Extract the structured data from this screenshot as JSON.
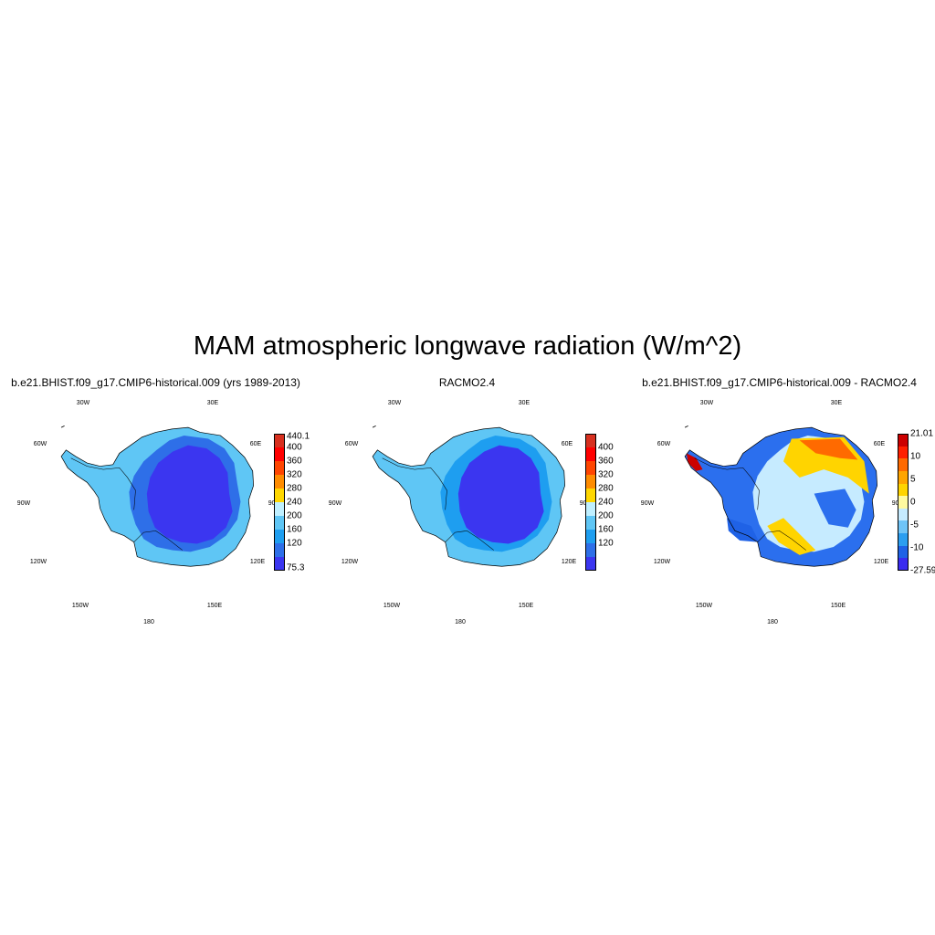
{
  "title": "MAM atmospheric longwave radiation (W/m^2)",
  "panels": [
    {
      "title": "b.e21.BHIST.f09_g17.CMIP6-historical.009 (yrs 1989-2013)",
      "variant": "abs",
      "colorbar": {
        "colors": [
          "#d7301f",
          "#ff0000",
          "#ff4500",
          "#ff8c00",
          "#ffd700",
          "#bfefff",
          "#5fc6f5",
          "#1e9ef0",
          "#2e6fe8",
          "#3b36f0"
        ],
        "labels": [
          "440.1",
          "400",
          "360",
          "320",
          "280",
          "240",
          "200",
          "160",
          "120",
          "75.3"
        ]
      }
    },
    {
      "title": "RACMO2.4",
      "variant": "abs2",
      "colorbar": {
        "colors": [
          "#d7301f",
          "#ff0000",
          "#ff4500",
          "#ff8c00",
          "#ffd700",
          "#bfefff",
          "#5fc6f5",
          "#1e9ef0",
          "#2e6fe8",
          "#3b36f0"
        ],
        "labels": [
          "",
          "400",
          "360",
          "320",
          "280",
          "240",
          "200",
          "160",
          "120",
          ""
        ]
      }
    },
    {
      "title": "b.e21.BHIST.f09_g17.CMIP6-historical.009 - RACMO2.4",
      "variant": "diff",
      "colorbar": {
        "colors": [
          "#cc0000",
          "#ff2000",
          "#ff6a00",
          "#ffa500",
          "#ffd400",
          "#fffaa0",
          "#c6ebff",
          "#6fc4f7",
          "#2b9ef0",
          "#1f62e6",
          "#3a2cf0"
        ],
        "labels": [
          "21.01",
          "10",
          "5",
          "0",
          "-5",
          "-10",
          "-27.59"
        ]
      }
    }
  ],
  "longitude_labels": [
    "30W",
    "30E",
    "60W",
    "60E",
    "90W",
    "90E",
    "120W",
    "120E",
    "150W",
    "150E",
    "180"
  ]
}
